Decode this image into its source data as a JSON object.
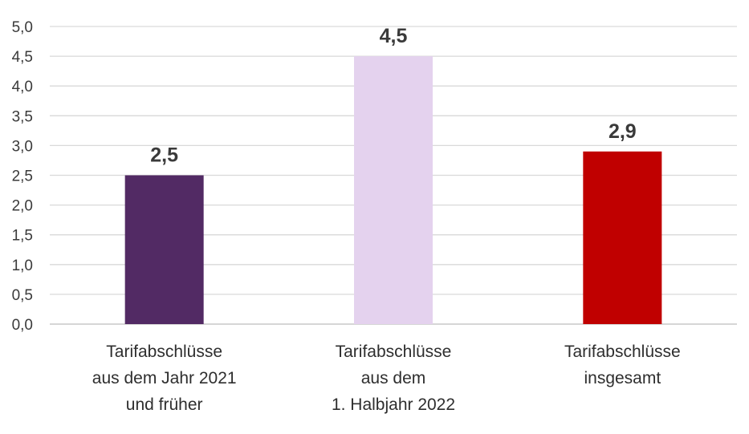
{
  "chart_data": {
    "type": "bar",
    "categories": [
      [
        "Tarifabschlüsse",
        "aus dem Jahr 2021",
        "und früher"
      ],
      [
        "Tarifabschlüsse",
        "aus dem",
        "1. Halbjahr 2022"
      ],
      [
        "Tarifabschlüsse",
        "insgesamt"
      ]
    ],
    "values": [
      2.5,
      4.5,
      2.9
    ],
    "value_labels": [
      "2,5",
      "4,5",
      "2,9"
    ],
    "colors": [
      "#522a64",
      "#e4d2ee",
      "#c00000"
    ],
    "ylim": [
      0,
      5
    ],
    "y_ticks": [
      "0,0",
      "0,5",
      "1,0",
      "1,5",
      "2,0",
      "2,5",
      "3,0",
      "3,5",
      "4,0",
      "4,5",
      "5,0"
    ],
    "grid": true,
    "legend": "none"
  }
}
